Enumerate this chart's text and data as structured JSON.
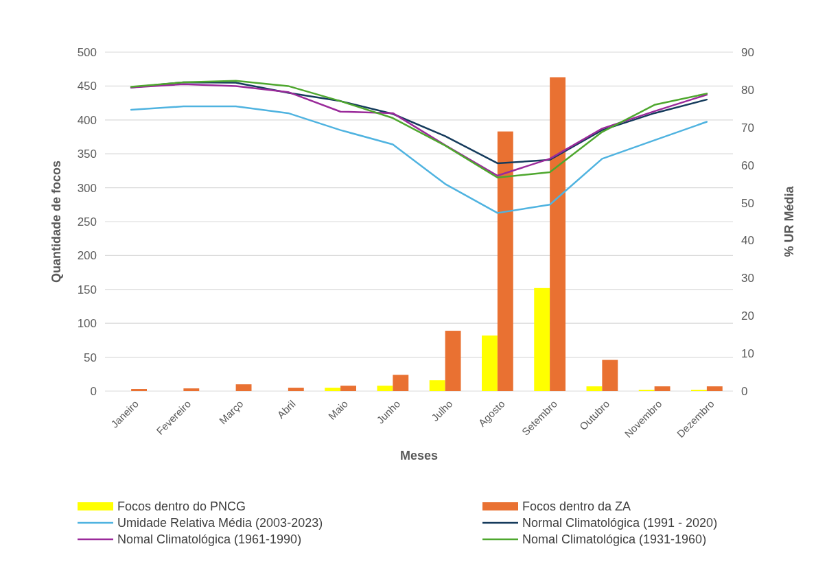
{
  "chart_data": {
    "type": "bar",
    "xlabel": "Meses",
    "ylabel": "Quantidade de focos",
    "y2label": "% UR Média",
    "categories": [
      "Janeiro",
      "Fevereiro",
      "Março",
      "Abril",
      "Maio",
      "Junho",
      "Julho",
      "Agosto",
      "Setembro",
      "Outubro",
      "Novembro",
      "Dezembro"
    ],
    "series": [
      {
        "name": "Focos dentro do PNCG",
        "color": "#ffff00",
        "values": [
          0,
          0,
          0,
          0,
          5,
          8,
          16,
          82,
          152,
          7,
          2,
          2
        ]
      },
      {
        "name": "Focos dentro da ZA",
        "color": "#e97132",
        "values": [
          3,
          4,
          10,
          5,
          8,
          24,
          89,
          383,
          463,
          46,
          7,
          7
        ]
      },
      {
        "name": "Umidade Relativa Média (2003-2023)",
        "type": "line",
        "axis": "y2",
        "color": "#4fb3e0",
        "values": [
          74.7,
          75.6,
          75.6,
          73.8,
          69.3,
          65.5,
          55,
          47.3,
          49.5,
          61.7,
          66.6,
          71.5
        ]
      },
      {
        "name": "Normal Climatológica (1991 - 2020)",
        "type": "line",
        "axis": "y2",
        "color": "#153b5c",
        "values": [
          80.6,
          82,
          81.9,
          79.2,
          77,
          73.6,
          67.7,
          60.5,
          61.4,
          69.3,
          73.8,
          77.4
        ]
      },
      {
        "name": "Nomal Climatológica (1961-1990)",
        "type": "line",
        "axis": "y2",
        "color": "#9a2a9a",
        "values": [
          80.6,
          81.5,
          81,
          79.4,
          74.2,
          73.8,
          65.3,
          57.2,
          61.7,
          69.7,
          74.3,
          78.7
        ]
      },
      {
        "name": "Nomal Climatológica (1931-1960)",
        "type": "line",
        "axis": "y2",
        "color": "#4ea72e",
        "values": [
          80.8,
          82,
          82.4,
          81,
          77,
          72.5,
          65.2,
          56.7,
          58.1,
          68.8,
          76,
          79
        ]
      }
    ],
    "ylim": [
      0,
      500
    ],
    "yticks": [
      0,
      50,
      100,
      150,
      200,
      250,
      300,
      350,
      400,
      450,
      500
    ],
    "y2lim": [
      0,
      90
    ],
    "y2ticks": [
      0,
      10,
      20,
      30,
      40,
      50,
      60,
      70,
      80,
      90
    ],
    "grid": "y",
    "legend": "bottom"
  }
}
